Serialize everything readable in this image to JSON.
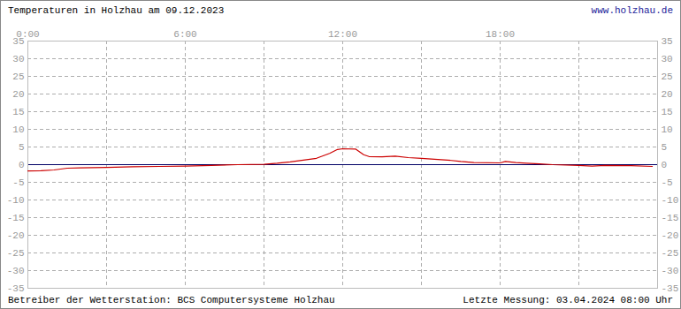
{
  "chart_data": {
    "type": "line",
    "title": "Temperaturen in Holzhau am 09.12.2023",
    "link": "www.holzhau.de",
    "footer_left": "Betreiber der Wetterstation: BCS Computersysteme Holzhau",
    "footer_right": "Letzte Messung: 03.04.2024 08:00 Uhr",
    "color": "#cc0000",
    "x": [
      0,
      0.5,
      1,
      1.5,
      2,
      3,
      4,
      5,
      6,
      7,
      8,
      9,
      9.5,
      10,
      10.5,
      11,
      11.5,
      11.8,
      12,
      12.5,
      12.8,
      13,
      13.5,
      14,
      14.5,
      15,
      16,
      16.5,
      17,
      18,
      18.2,
      18.6,
      19,
      19.5,
      20,
      21,
      21.5,
      22,
      23,
      23.8
    ],
    "values": [
      -1.8,
      -1.7,
      -1.5,
      -1.0,
      -0.9,
      -0.8,
      -0.6,
      -0.5,
      -0.4,
      -0.2,
      0.0,
      0.1,
      0.4,
      0.8,
      1.3,
      1.8,
      3.2,
      4.3,
      4.5,
      4.4,
      2.8,
      2.3,
      2.2,
      2.4,
      2.0,
      1.8,
      1.3,
      0.9,
      0.6,
      0.5,
      0.9,
      0.6,
      0.4,
      0.2,
      0.0,
      -0.2,
      -0.4,
      -0.2,
      -0.3,
      -0.5
    ],
    "xlim": [
      0,
      24
    ],
    "xticks": [
      {
        "value": 0,
        "label": "0:00"
      },
      {
        "value": 6,
        "label": "6:00"
      },
      {
        "value": 12,
        "label": "12:00"
      },
      {
        "value": 18,
        "label": "18:00"
      }
    ],
    "x_grid": [
      3,
      9,
      15,
      21
    ],
    "ylim": [
      -35,
      35
    ],
    "yticks": [
      -35,
      -30,
      -25,
      -20,
      -15,
      -10,
      -5,
      0,
      5,
      10,
      15,
      20,
      25,
      30,
      35
    ],
    "grid": true
  }
}
